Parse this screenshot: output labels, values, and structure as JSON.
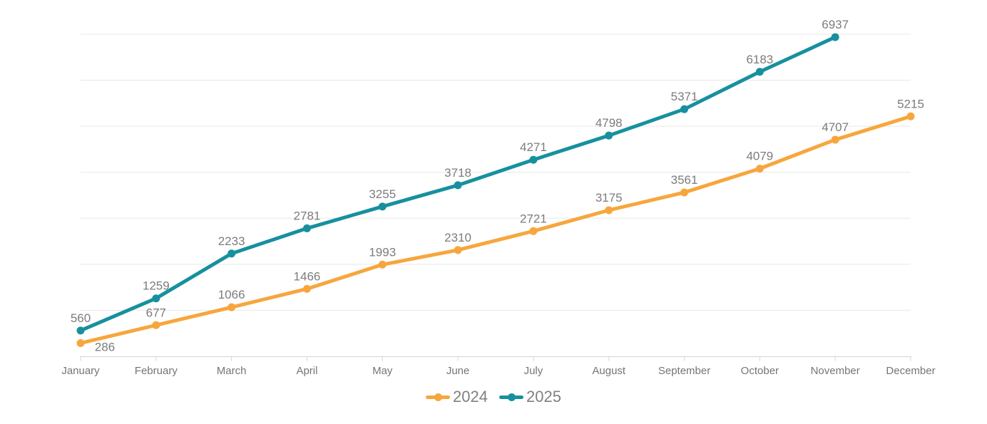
{
  "chart_data": {
    "type": "line",
    "title": "",
    "xlabel": "",
    "ylabel": "",
    "categories": [
      "January",
      "February",
      "March",
      "April",
      "May",
      "June",
      "July",
      "August",
      "September",
      "October",
      "November",
      "December"
    ],
    "series": [
      {
        "name": "2024",
        "color": "#F7A63D",
        "values": [
          286,
          677,
          1066,
          1466,
          1993,
          2310,
          2721,
          3175,
          3561,
          4079,
          4707,
          5215
        ],
        "first_label_position": "below-right"
      },
      {
        "name": "2025",
        "color": "#17909E",
        "values": [
          560,
          1259,
          2233,
          2781,
          3255,
          3718,
          4271,
          4798,
          5371,
          6183,
          6937
        ]
      }
    ],
    "ylim": [
      0,
      7000
    ],
    "grid": {
      "show": true,
      "interval": 1000,
      "color": "#E8E8E8"
    },
    "axis": {
      "line_color": "#D5D5D5",
      "label_color": "#757575"
    },
    "value_labels": {
      "show": true,
      "color": "#7C7C7C"
    },
    "legend": {
      "position": "bottom",
      "text_color": "#808080"
    }
  }
}
